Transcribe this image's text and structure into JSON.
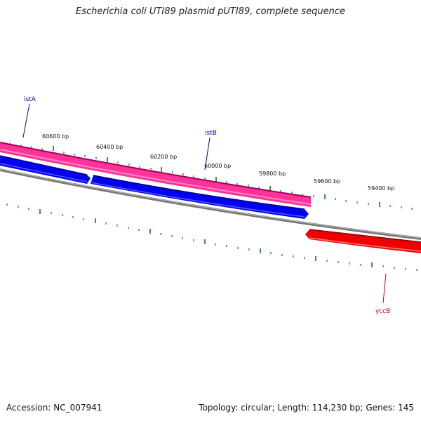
{
  "title": "Escherichia coli UTI89 plasmid pUTI89, complete sequence",
  "footer": {
    "accession": "Accession: NC_007941",
    "summary": "Topology: circular; Length: 114,230 bp; Genes: 145"
  },
  "ticks": [
    {
      "label": "60600 bp"
    },
    {
      "label": "60400 bp"
    },
    {
      "label": "60200 bp"
    },
    {
      "label": "60000 bp"
    },
    {
      "label": "59800 bp"
    },
    {
      "label": "59600 bp"
    },
    {
      "label": "59400 bp"
    }
  ],
  "genes": [
    {
      "name": "istA",
      "color": "#0000aa",
      "fill": "#ff3399"
    },
    {
      "name": "istB",
      "color": "#0000aa",
      "fill": "#0000ee"
    },
    {
      "name": "yccB",
      "color": "#cc0000",
      "fill": "#ee0000"
    }
  ],
  "colors": {
    "backbone": "#888888",
    "tick": "#117711",
    "forward_gene": "#ff3399",
    "reverse_gene_1": "#0000ee",
    "reverse_gene_2": "#ee0000"
  }
}
